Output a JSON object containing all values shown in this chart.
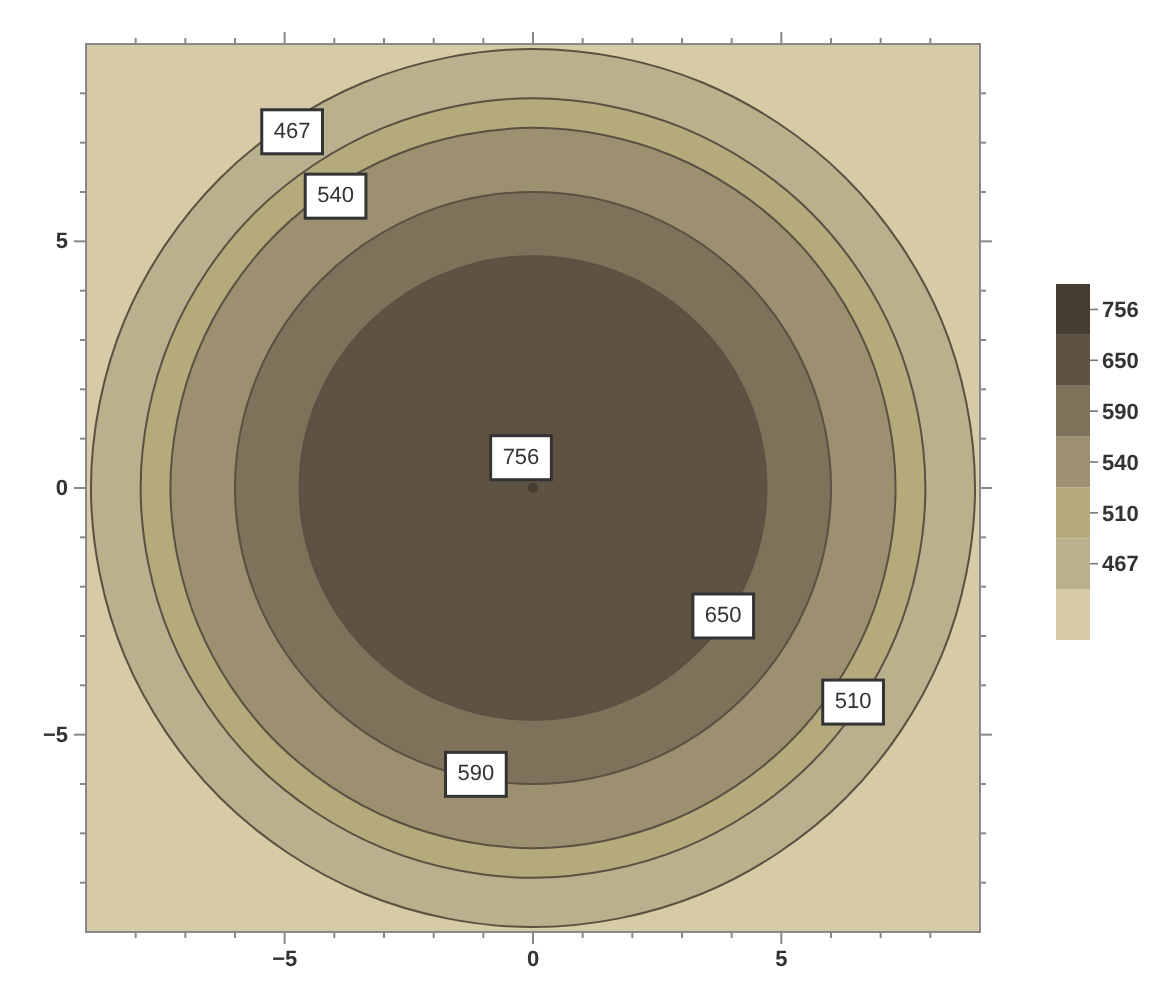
{
  "chart_data": {
    "type": "area",
    "legend": "right",
    "xlim": [
      -9,
      9
    ],
    "ylim": [
      -9,
      9
    ],
    "xticks": [
      {
        "value": -8,
        "label": null
      },
      {
        "value": -7,
        "label": null
      },
      {
        "value": -6,
        "label": null
      },
      {
        "value": -5,
        "label": "−5"
      },
      {
        "value": -4,
        "label": null
      },
      {
        "value": -3,
        "label": null
      },
      {
        "value": -2,
        "label": null
      },
      {
        "value": -1,
        "label": null
      },
      0,
      {
        "value": 1,
        "label": null
      },
      {
        "value": 2,
        "label": null
      },
      {
        "value": 3,
        "label": null
      },
      {
        "value": 4,
        "label": null
      },
      5,
      {
        "value": 6,
        "label": null
      },
      {
        "value": 7,
        "label": null
      },
      {
        "value": 8,
        "label": null
      }
    ],
    "yticks": [
      {
        "value": -8,
        "label": null
      },
      {
        "value": -7,
        "label": null
      },
      {
        "value": -6,
        "label": null
      },
      {
        "value": -5,
        "label": "−5"
      },
      {
        "value": -4,
        "label": null
      },
      {
        "value": -3,
        "label": null
      },
      {
        "value": -2,
        "label": null
      },
      {
        "value": -1,
        "label": null
      },
      0,
      {
        "value": 1,
        "label": null
      },
      {
        "value": 2,
        "label": null
      },
      {
        "value": 3,
        "label": null
      },
      {
        "value": 4,
        "label": null
      },
      5,
      {
        "value": 6,
        "label": null
      },
      {
        "value": 7,
        "label": null
      },
      {
        "value": 8,
        "label": null
      }
    ],
    "series": [
      {
        "name": "467",
        "color": "#b9b08e",
        "x": [
          -3.41,
          -6.29,
          -8.22,
          -8.9,
          -8.22,
          -6.29,
          -3.41,
          0,
          3.41,
          6.29,
          8.22,
          8.9,
          8.22,
          6.29,
          3.41,
          0
        ],
        "values": [
          8.22,
          6.29,
          3.41,
          0,
          -3.41,
          -6.29,
          -8.22,
          -8.9,
          -8.22,
          -6.29,
          -3.41,
          0,
          3.41,
          6.29,
          8.22,
          8.9
        ]
      },
      {
        "name": "510",
        "color": "#b5aa7c",
        "x": [
          5.59,
          7.3,
          7.9,
          7.3,
          5.59,
          3.02,
          0,
          -3.02,
          -5.59,
          -7.3,
          -7.9,
          -7.3,
          -5.59,
          -3.02,
          0,
          3.02
        ],
        "values": [
          -5.59,
          -3.02,
          0,
          3.02,
          5.59,
          7.3,
          7.9,
          7.3,
          5.59,
          3.02,
          0,
          -3.02,
          -5.59,
          -7.3,
          -7.9,
          -7.3
        ]
      },
      {
        "name": "540",
        "color": "#9d9070",
        "x": [
          -2.79,
          -5.16,
          -6.74,
          -7.3,
          -6.74,
          -5.16,
          -2.79,
          0,
          2.79,
          5.16,
          6.74,
          7.3,
          6.74,
          5.16,
          2.79,
          0
        ],
        "values": [
          6.74,
          5.16,
          2.79,
          0,
          -2.79,
          -5.16,
          -6.74,
          -7.3,
          -6.74,
          -5.16,
          -2.79,
          0,
          2.79,
          5.16,
          6.74,
          7.3
        ]
      },
      {
        "name": "590",
        "color": "#7f725a",
        "x": [
          -2.3,
          0,
          2.3,
          4.24,
          5.54,
          6,
          5.54,
          4.24,
          2.3,
          0,
          -2.3,
          -4.24,
          -5.54,
          -6,
          -5.54,
          -4.24
        ],
        "values": [
          -5.54,
          -6,
          -5.54,
          -4.24,
          -2.3,
          0,
          2.3,
          4.24,
          5.54,
          6,
          5.54,
          4.24,
          2.3,
          0,
          -2.3,
          -4.24
        ]
      },
      {
        "name": "650",
        "color": "#5e5343",
        "x": [
          3.32,
          4.34,
          4.7,
          4.34,
          3.32,
          1.8,
          0,
          -1.8,
          -3.32,
          -4.34,
          -4.7,
          -4.34,
          -3.32,
          -1.8,
          0,
          1.8
        ],
        "values": [
          -3.32,
          -1.8,
          0,
          1.8,
          3.32,
          4.34,
          4.7,
          4.34,
          3.32,
          1.8,
          0,
          -1.8,
          -3.32,
          -4.34,
          -4.7,
          -4.34
        ]
      },
      {
        "name": "756",
        "type": "scatter",
        "color": "#463c30",
        "marker": "circle",
        "x": [
          0
        ],
        "values": [
          0
        ]
      }
    ]
  }
}
